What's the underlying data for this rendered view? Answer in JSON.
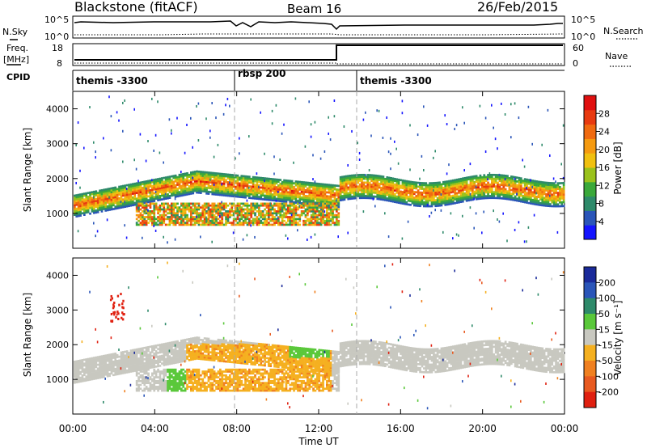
{
  "header": {
    "title": "Blackstone (fitACF)",
    "beam": "Beam 16",
    "date": "26/Feb/2015"
  },
  "top_panels": {
    "nsky_label": "N.Sky",
    "nsky_ticks": [
      "10^5",
      "10^0"
    ],
    "nsearch_label": "N.Search",
    "nsearch_ticks": [
      "10^5",
      "10^0"
    ],
    "freq_label": "Freq.",
    "freq_unit": "[MHz]",
    "freq_ticks": [
      "18",
      "8"
    ],
    "nave_label": "Nave",
    "nave_ticks": [
      "60",
      "0"
    ],
    "cpid_label": "CPID",
    "cpid_segments": [
      {
        "label": "themis -3300",
        "start": "00:00"
      },
      {
        "label": "rbsp 200",
        "start": "08:00"
      },
      {
        "label": "themis -3300",
        "start": "14:00"
      }
    ]
  },
  "chart_data": [
    {
      "type": "heatmap",
      "name": "power",
      "ylabel": "Slant Range [km]",
      "ylim": [
        0,
        4500
      ],
      "yticks": [
        1000,
        2000,
        3000,
        4000
      ],
      "xlim": [
        "00:00",
        "24:00"
      ],
      "colorbar_label": "Power [dB]",
      "colorbar_ticks": [
        "4",
        "8",
        "12",
        "16",
        "20",
        "24",
        "28"
      ],
      "colorbar_colors": [
        "#1414ff",
        "#2a55b8",
        "#2e8a6a",
        "#3aa83a",
        "#9ac21c",
        "#f0c010",
        "#f59a10",
        "#f06a10",
        "#e83a10",
        "#e01010"
      ],
      "bands": [
        {
          "t_start": 0,
          "t_end": 6,
          "range_start": 1100,
          "range_end": 1900,
          "level_db": 20
        },
        {
          "t_start": 13,
          "t_end": 24,
          "range_start": 1300,
          "range_end": 2100,
          "level_db": 22
        },
        {
          "t_start": 4,
          "t_end": 13,
          "range_start": 600,
          "range_end": 1500,
          "level_db": 20
        }
      ]
    },
    {
      "type": "heatmap",
      "name": "velocity",
      "ylabel": "Slant Range [km]",
      "ylim": [
        0,
        4500
      ],
      "yticks": [
        1000,
        2000,
        3000,
        4000
      ],
      "xlim": [
        "00:00",
        "24:00"
      ],
      "xlabel": "Time UT",
      "xticks": [
        "00:00",
        "04:00",
        "08:00",
        "12:00",
        "16:00",
        "20:00",
        "00:00"
      ],
      "colorbar_label": "Velocity [m s⁻¹]",
      "colorbar_ticks": [
        "200",
        "100",
        "50",
        "15",
        "-15",
        "-50",
        "-100",
        "-200"
      ],
      "colorbar_colors": [
        "#1a2a9a",
        "#2a55b8",
        "#2e8a6a",
        "#5ac83a",
        "#c8c8c0",
        "#f5b020",
        "#f08020",
        "#e85a20",
        "#e02010"
      ]
    }
  ]
}
